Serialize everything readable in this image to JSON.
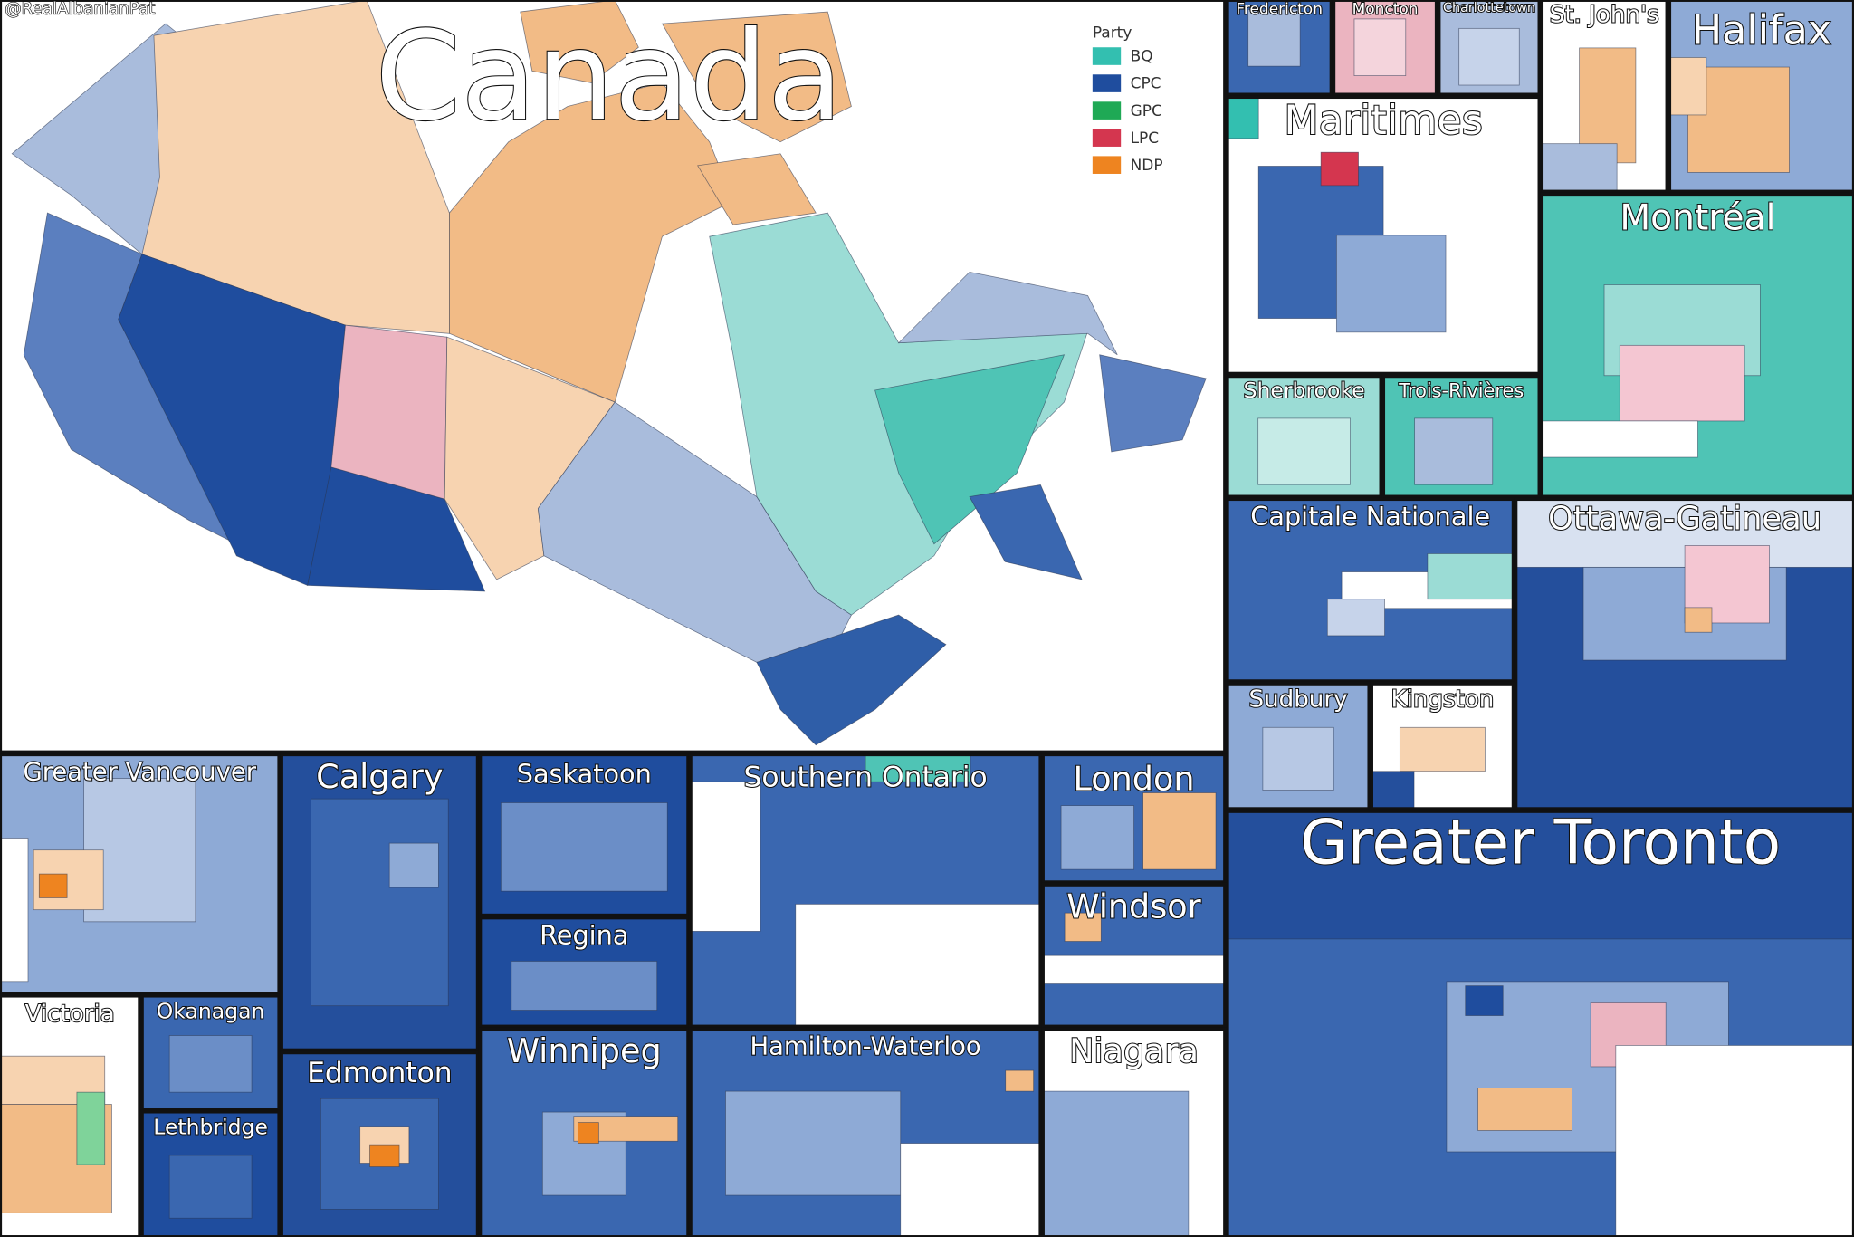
{
  "credit": "@RealAlbanianPat",
  "title": "Canada",
  "legend": {
    "title": "Party",
    "items": [
      {
        "label": "BQ",
        "color": "#33bfb0"
      },
      {
        "label": "CPC",
        "color": "#1f4d9e"
      },
      {
        "label": "GPC",
        "color": "#1fa955"
      },
      {
        "label": "LPC",
        "color": "#d4364f"
      },
      {
        "label": "NDP",
        "color": "#ee8420"
      }
    ]
  },
  "panels": [
    "Fredericton",
    "Moncton",
    "Charlottetown",
    "St. John's",
    "Halifax",
    "Maritimes",
    "Montréal",
    "Sherbrooke",
    "Trois-Rivières",
    "Capitale Nationale",
    "Ottawa-Gatineau",
    "Sudbury",
    "Kingston",
    "Greater Toronto",
    "Greater Vancouver",
    "Victoria",
    "Okanagan",
    "Lethbridge",
    "Calgary",
    "Edmonton",
    "Saskatoon",
    "Regina",
    "Winnipeg",
    "Southern Ontario",
    "Hamilton-Waterloo",
    "London",
    "Windsor",
    "Niagara"
  ]
}
